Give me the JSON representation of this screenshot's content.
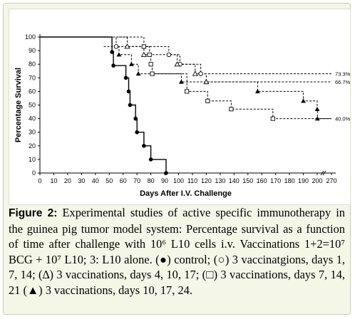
{
  "chart_data": {
    "type": "line",
    "xlabel": "Days After I.V. Challenge",
    "ylabel": "Percentage Survival",
    "xlim": [
      0,
      270
    ],
    "ylim": [
      0,
      100
    ],
    "x_ticks": [
      "0",
      "10",
      "20",
      "30",
      "40",
      "50",
      "60",
      "70",
      "80",
      "90",
      "100",
      "110",
      "120",
      "130",
      "140",
      "150",
      "160",
      "170",
      "180",
      "190",
      "200",
      "270"
    ],
    "y_ticks": [
      "0",
      "10",
      "20",
      "30",
      "40",
      "50",
      "60",
      "70",
      "80",
      "90",
      "100"
    ],
    "x_axis_break_between": [
      200,
      270
    ],
    "grid": false,
    "series": [
      {
        "marker": "filled-circle",
        "line": "solid",
        "end_label": "",
        "points": [
          [
            0,
            100
          ],
          [
            52,
            100
          ],
          [
            52,
            89
          ],
          [
            53,
            89
          ],
          [
            53,
            79
          ],
          [
            62,
            79
          ],
          [
            62,
            70
          ],
          [
            64,
            70
          ],
          [
            64,
            60
          ],
          [
            65,
            60
          ],
          [
            65,
            50
          ],
          [
            69,
            50
          ],
          [
            69,
            40
          ],
          [
            70,
            40
          ],
          [
            70,
            30
          ],
          [
            75,
            30
          ],
          [
            75,
            20
          ],
          [
            80,
            20
          ],
          [
            80,
            10
          ],
          [
            91,
            10
          ],
          [
            91,
            0
          ]
        ]
      },
      {
        "marker": "open-circle",
        "line": "dashed",
        "end_label": "73.3%",
        "points": [
          [
            45,
            100
          ],
          [
            55,
            100
          ],
          [
            55,
            93
          ],
          [
            93,
            93
          ],
          [
            93,
            87
          ],
          [
            101,
            87
          ],
          [
            101,
            80
          ],
          [
            116,
            80
          ],
          [
            116,
            73
          ],
          [
            270,
            73
          ]
        ]
      },
      {
        "marker": "open-triangle",
        "line": "dashed",
        "end_label": "66.7%",
        "points": [
          [
            50,
            100
          ],
          [
            63,
            100
          ],
          [
            63,
            93
          ],
          [
            75,
            93
          ],
          [
            75,
            87
          ],
          [
            99,
            87
          ],
          [
            99,
            80
          ],
          [
            112,
            80
          ],
          [
            112,
            73
          ],
          [
            120,
            73
          ],
          [
            120,
            67
          ],
          [
            270,
            67
          ]
        ]
      },
      {
        "marker": "open-square",
        "line": "dashed",
        "end_label": "40.0%",
        "points": [
          [
            57,
            100
          ],
          [
            75,
            100
          ],
          [
            75,
            93
          ],
          [
            79,
            93
          ],
          [
            79,
            87
          ],
          [
            80,
            87
          ],
          [
            80,
            80
          ],
          [
            81,
            80
          ],
          [
            81,
            73
          ],
          [
            106,
            73
          ],
          [
            106,
            60
          ],
          [
            121,
            60
          ],
          [
            121,
            53
          ],
          [
            138,
            53
          ],
          [
            138,
            47
          ],
          [
            168,
            47
          ],
          [
            168,
            40
          ],
          [
            270,
            40
          ]
        ]
      },
      {
        "marker": "filled-triangle",
        "line": "dashed",
        "end_label": "",
        "points": [
          [
            46,
            93
          ],
          [
            57,
            93
          ],
          [
            57,
            87
          ],
          [
            66,
            87
          ],
          [
            66,
            80
          ],
          [
            71,
            80
          ],
          [
            71,
            73
          ],
          [
            102,
            73
          ],
          [
            102,
            67
          ],
          [
            157,
            67
          ],
          [
            157,
            60
          ],
          [
            190,
            60
          ],
          [
            190,
            53
          ],
          [
            200,
            53
          ],
          [
            200,
            47
          ],
          [
            201,
            47
          ],
          [
            201,
            40
          ],
          [
            270,
            40
          ]
        ]
      }
    ]
  },
  "caption": {
    "figure_label": "Figure 2:",
    "text": "Experimental studies of active specific immunotherapy in the guinea pig tumor model system: Percentage survival as a function of time after challenge with 10⁶ L10 cells i.v. Vaccinations 1+2=10⁷ BCG + 10⁷ L10; 3: L10 alone. (●) control; (○) 3 vaccinatgions, days 1, 7, 14; (∆) 3 vaccinations, days 4, 10, 17; (□) 3 vaccinations, days 7, 14, 21 (▲) 3 vaccinations, days 10, 17, 24."
  }
}
